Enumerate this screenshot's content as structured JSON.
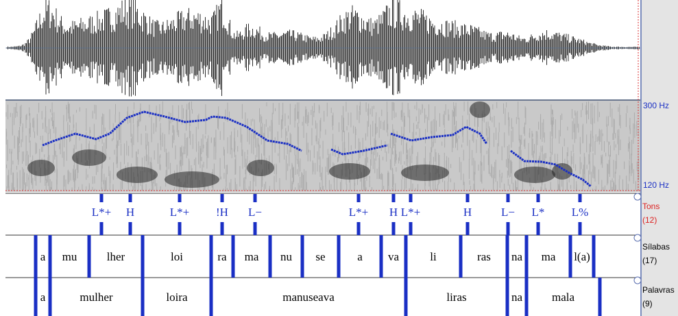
{
  "pitch_axis": {
    "top_label": "300 Hz",
    "bottom_label": "120 Hz"
  },
  "tiers": [
    {
      "name": "Tons",
      "count": "(12)",
      "labels": [
        "L*+",
        "H",
        "L*+",
        "!H",
        "L−",
        "L*+",
        "H",
        "L*+",
        "H",
        "L−",
        "L*",
        "L%"
      ]
    },
    {
      "name": "Sílabas",
      "count": "(17)",
      "labels": [
        "a",
        "mu",
        "lher",
        "loi",
        "ra",
        "ma",
        "nu",
        "se",
        "a",
        "va",
        "li",
        "ras",
        "na",
        "ma",
        "l(a)"
      ]
    },
    {
      "name": "Palavras",
      "count": "(9)",
      "labels": [
        "a",
        "mulher",
        "loira",
        "manuseava",
        "liras",
        "na",
        "mala"
      ]
    }
  ]
}
